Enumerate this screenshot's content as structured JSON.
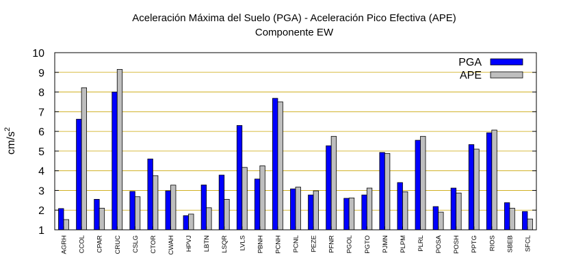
{
  "chart_data": {
    "type": "bar",
    "title": "Aceleración Máxima del Suelo (PGA) -  Aceleración Pico Efectiva (APE)",
    "subtitle": "Componente EW",
    "xlabel": "",
    "ylabel": "cm/s",
    "ylabel_superscript": "2",
    "ylim": [
      1,
      10
    ],
    "yticks": [
      1,
      2,
      3,
      4,
      5,
      6,
      7,
      8,
      9,
      10
    ],
    "grid": true,
    "legend_position": "top-right",
    "categories": [
      "AGRH",
      "CCOL",
      "CPAR",
      "CRUC",
      "CSLG",
      "CTOR",
      "CWAH",
      "HPVJ",
      "LBTN",
      "LSQR",
      "LVLS",
      "PBNH",
      "PCNH",
      "PCNL",
      "PEZE",
      "PFNR",
      "PGOL",
      "PGTO",
      "PJMN",
      "PLPM",
      "PLRL",
      "POSA",
      "POSH",
      "PPTG",
      "RIOS",
      "SBEB",
      "SFCL"
    ],
    "series": [
      {
        "name": "PGA",
        "color": "#0000ff",
        "values": [
          2.08,
          6.62,
          2.55,
          8.0,
          2.95,
          4.6,
          2.98,
          1.72,
          3.28,
          3.78,
          6.3,
          3.58,
          7.68,
          3.08,
          2.77,
          5.27,
          2.6,
          2.77,
          4.93,
          3.4,
          5.55,
          2.18,
          3.12,
          5.33,
          5.93,
          2.38,
          1.93
        ]
      },
      {
        "name": "APE",
        "color": "#bebebe",
        "values": [
          1.52,
          8.22,
          2.1,
          9.15,
          2.68,
          3.75,
          3.27,
          1.8,
          2.12,
          2.55,
          4.17,
          4.25,
          7.5,
          3.17,
          2.98,
          5.75,
          2.62,
          3.12,
          4.88,
          2.93,
          5.75,
          1.9,
          2.87,
          5.1,
          6.07,
          2.1,
          1.55
        ]
      }
    ]
  }
}
